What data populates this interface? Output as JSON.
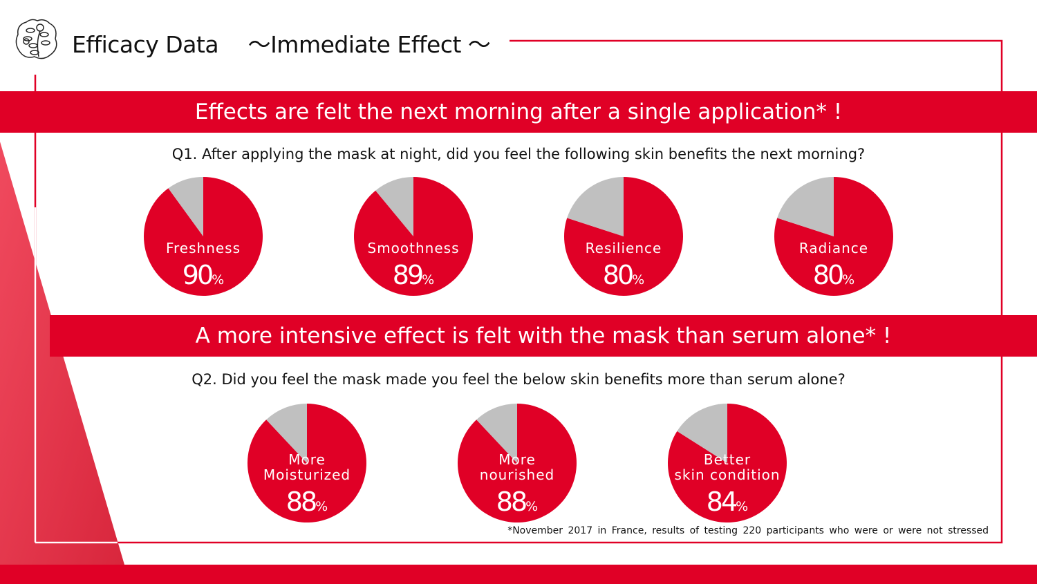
{
  "header": {
    "title": "Efficacy Data 　～Immediate Effect ～",
    "logo_icon": "camellia-emblem-icon"
  },
  "section1": {
    "banner": "Effects are felt the next morning after a single application* !",
    "question": "Q1. After applying the mask at night, did you feel the following skin benefits the next morning?"
  },
  "section2": {
    "banner": "A more intensive effect is felt with the mask than serum alone* !",
    "question": "Q2. Did you feel the mask made you feel the below skin benefits more than serum alone?"
  },
  "footnote": "*November 2017 in France, results of testing 220 participants who were or were not stressed",
  "colors": {
    "accent": "#e00026",
    "remainder": "#c0c0c0"
  },
  "chart_data": [
    {
      "type": "pie",
      "group": "Q1",
      "label": "Freshness",
      "value": 90,
      "display": "90",
      "unit": "%"
    },
    {
      "type": "pie",
      "group": "Q1",
      "label": "Smoothness",
      "value": 89,
      "display": "89",
      "unit": "%"
    },
    {
      "type": "pie",
      "group": "Q1",
      "label": "Resilience",
      "value": 80,
      "display": "80",
      "unit": "%"
    },
    {
      "type": "pie",
      "group": "Q1",
      "label": "Radiance",
      "value": 80,
      "display": "80",
      "unit": "%"
    },
    {
      "type": "pie",
      "group": "Q2",
      "label": "More\nMoisturized",
      "value": 88,
      "display": "88",
      "unit": "%"
    },
    {
      "type": "pie",
      "group": "Q2",
      "label": "More\nnourished",
      "value": 88,
      "display": "88",
      "unit": "%"
    },
    {
      "type": "pie",
      "group": "Q2",
      "label": "Better\nskin condition",
      "value": 84,
      "display": "84",
      "unit": "%"
    }
  ]
}
